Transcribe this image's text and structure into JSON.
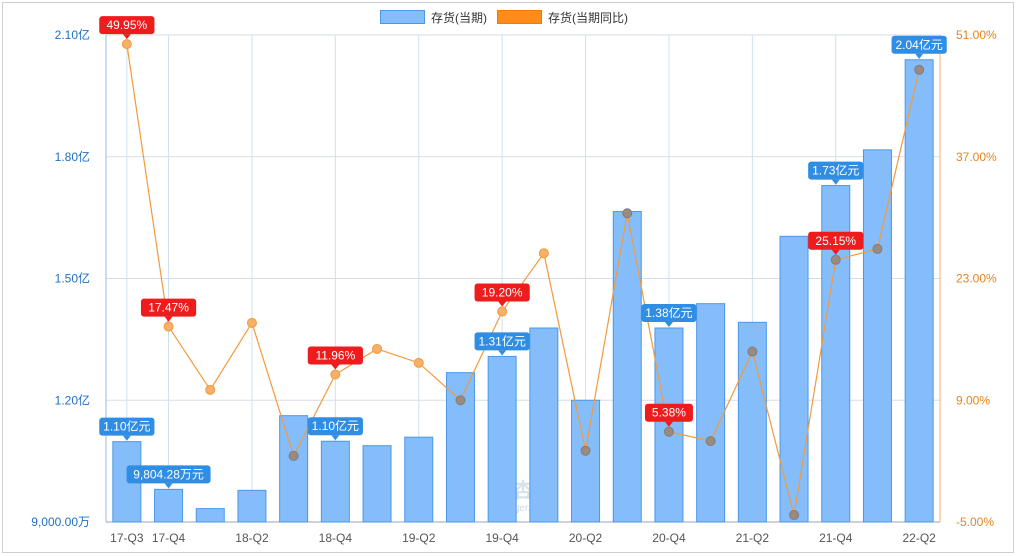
{
  "legend": {
    "bar_label": "存货(当期)",
    "line_label": "存货(当期同比)"
  },
  "watermark": {
    "logo_text": "理杏仁",
    "url_text": "lixinger.com"
  },
  "colors": {
    "bar_fill": "#85bdfa",
    "bar_stroke": "#4b97e8",
    "line": "#f29a3c",
    "left_axis_text": "#1f6fc5",
    "right_axis_text": "#e8841a",
    "bar_label_bg": "#2f8de4",
    "line_label_bg": "#ee1c1c"
  },
  "chart_data": {
    "type": "bar+line",
    "categories": [
      "17-Q3",
      "17-Q4",
      "18-Q1",
      "18-Q2",
      "18-Q3",
      "18-Q4",
      "19-Q1",
      "19-Q2",
      "19-Q3",
      "19-Q4",
      "20-Q1",
      "20-Q2",
      "20-Q3",
      "20-Q4",
      "21-Q1",
      "21-Q2",
      "21-Q3",
      "21-Q4",
      "22-Q1",
      "22-Q2"
    ],
    "x_tick_labels": [
      "17-Q3",
      "17-Q4",
      "18-Q2",
      "18-Q4",
      "19-Q2",
      "19-Q4",
      "20-Q2",
      "20-Q4",
      "21-Q2",
      "21-Q4",
      "22-Q2"
    ],
    "left_axis": {
      "unit": "万元",
      "min": 9000,
      "max": 21000,
      "ticks": [
        9000,
        12000,
        15000,
        18000,
        21000
      ],
      "tick_labels": [
        "9,000.00万",
        "1.20亿",
        "1.50亿",
        "1.80亿",
        "2.10亿"
      ]
    },
    "right_axis": {
      "unit": "%",
      "min": -5,
      "max": 51,
      "ticks": [
        -5,
        9,
        23,
        37,
        51
      ],
      "tick_labels": [
        "-5.00%",
        "9.00%",
        "23.00%",
        "37.00%",
        "51.00%"
      ]
    },
    "series": [
      {
        "name": "存货(当期)",
        "type": "bar",
        "axis": "left",
        "values": [
          10980,
          9804.28,
          9330,
          9780,
          11620,
          10990,
          10880,
          11090,
          12680,
          13080,
          13780,
          12000,
          16650,
          13780,
          14380,
          13920,
          16040,
          17290,
          18170,
          20390
        ]
      },
      {
        "name": "存货(当期同比)",
        "type": "line",
        "axis": "right",
        "values": [
          49.95,
          17.47,
          10.2,
          17.9,
          2.6,
          11.96,
          14.9,
          13.3,
          9.0,
          19.2,
          25.9,
          3.2,
          30.5,
          5.38,
          4.3,
          14.6,
          -4.2,
          25.15,
          26.4,
          47.0
        ]
      }
    ],
    "bar_annotations": [
      {
        "index": 0,
        "text": "1.10亿元"
      },
      {
        "index": 1,
        "text": "9,804.28万元"
      },
      {
        "index": 5,
        "text": "1.10亿元"
      },
      {
        "index": 9,
        "text": "1.31亿元"
      },
      {
        "index": 13,
        "text": "1.38亿元"
      },
      {
        "index": 17,
        "text": "1.73亿元"
      },
      {
        "index": 19,
        "text": "2.04亿元"
      }
    ],
    "line_annotations": [
      {
        "index": 0,
        "text": "49.95%"
      },
      {
        "index": 1,
        "text": "17.47%"
      },
      {
        "index": 5,
        "text": "11.96%"
      },
      {
        "index": 9,
        "text": "19.20%"
      },
      {
        "index": 13,
        "text": "5.38%"
      },
      {
        "index": 17,
        "text": "25.15%"
      }
    ],
    "grid": true,
    "legend_position": "top-center"
  }
}
